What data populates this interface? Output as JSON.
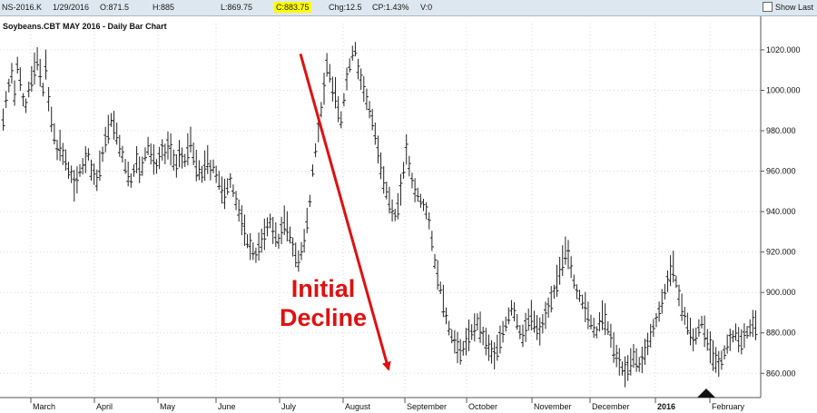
{
  "toolbar": {
    "symbol": "NS-2016.K",
    "date": "1/29/2016",
    "open": "O:871.5",
    "high": "H:885",
    "low": "L:869.75",
    "close": "C:883.75",
    "change": "Chg:12.5",
    "change_pct": "CP:1.43%",
    "volume": "V:0",
    "show_last_label": "Show Last"
  },
  "colors": {
    "bars": "#222222",
    "annotation": "#e01010",
    "toolbar_bg": "#dde7f0",
    "grid": "#d8d8d8"
  },
  "annotation": {
    "line1": "Initial",
    "line2": "Decline"
  },
  "chart_data": {
    "type": "bar",
    "title": "Soybeans.CBT MAY 2016 - Daily Bar Chart",
    "ylim": [
      848,
      1033
    ],
    "yticks": [
      860,
      880,
      900,
      920,
      940,
      960,
      980,
      1000,
      1020
    ],
    "ytick_labels": [
      "860.000",
      "880.000",
      "900.000",
      "920.000",
      "940.000",
      "960.000",
      "980.000",
      "1000.000",
      "1020.000"
    ],
    "months": [
      "March",
      "April",
      "May",
      "June",
      "July",
      "August",
      "September",
      "October",
      "November",
      "December",
      "2016",
      "February"
    ],
    "grid": true,
    "arrow": {
      "from": [
        1018
      ],
      "to": [
        862
      ]
    },
    "series": [
      {
        "values": [
          985,
          995,
          1002,
          1008,
          998,
          1012,
          1005,
          995,
          992,
          1000,
          1005,
          1010,
          1015,
          1008,
          1000,
          1012,
          995,
          985,
          978,
          970,
          972,
          968,
          965,
          960,
          958,
          952,
          955,
          960,
          962,
          965,
          968,
          960,
          958,
          955,
          962,
          968,
          975,
          980,
          985,
          982,
          978,
          972,
          968,
          962,
          958,
          955,
          960,
          965,
          960,
          962,
          968,
          972,
          968,
          965,
          962,
          966,
          970,
          968,
          972,
          970,
          965,
          962,
          968,
          966,
          965,
          970,
          975,
          968,
          962,
          960,
          958,
          962,
          965,
          960,
          962,
          958,
          955,
          950,
          948,
          952,
          955,
          950,
          945,
          940,
          935,
          930,
          925,
          922,
          920,
          918,
          922,
          925,
          928,
          932,
          935,
          930,
          928,
          925,
          930,
          935,
          932,
          928,
          922,
          918,
          915,
          920,
          925,
          935,
          945,
          960,
          970,
          980,
          990,
          1000,
          1012,
          1008,
          1000,
          998,
          990,
          985,
          995,
          1005,
          1012,
          1018,
          1020,
          1010,
          1005,
          1000,
          995,
          990,
          985,
          978,
          970,
          962,
          955,
          950,
          945,
          940,
          938,
          942,
          950,
          960,
          970,
          962,
          955,
          950,
          948,
          945,
          943,
          940,
          935,
          925,
          915,
          908,
          902,
          895,
          888,
          882,
          878,
          875,
          872,
          870,
          872,
          875,
          878,
          880,
          882,
          885,
          882,
          878,
          875,
          872,
          870,
          868,
          872,
          876,
          880,
          884,
          888,
          892,
          890,
          885,
          880,
          878,
          882,
          886,
          888,
          885,
          882,
          880,
          884,
          888,
          892,
          896,
          900,
          905,
          910,
          915,
          920,
          918,
          912,
          905,
          900,
          898,
          895,
          892,
          888,
          885,
          882,
          880,
          885,
          888,
          886,
          882,
          878,
          872,
          868,
          865,
          862,
          860,
          862,
          865,
          868,
          866,
          864,
          866,
          870,
          874,
          878,
          882,
          886,
          890,
          895,
          900,
          905,
          910,
          912,
          905,
          898,
          892,
          888,
          884,
          880,
          876,
          878,
          882,
          885,
          880,
          876,
          872,
          868,
          866,
          864,
          866,
          870,
          874,
          876,
          878,
          880,
          876,
          875,
          878,
          880,
          882,
          884,
          883
        ]
      }
    ]
  }
}
